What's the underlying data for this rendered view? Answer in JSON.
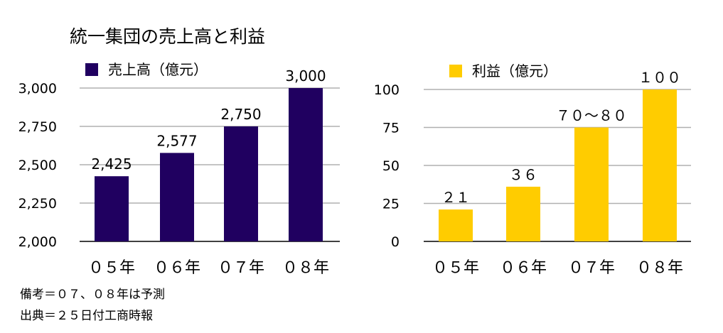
{
  "title": "統一集団の売上高と利益",
  "notes": {
    "remark": "備考＝０７、０８年は予測",
    "source": "出典＝２５日付工商時報"
  },
  "colors": {
    "sales": "#200060",
    "profit": "#ffcc00",
    "grid": "#b0b0b0"
  },
  "chart_data": [
    {
      "type": "bar",
      "legend": "売上高（億元）",
      "categories": [
        "０５年",
        "０６年",
        "０７年",
        "０８年"
      ],
      "values": [
        2425,
        2577,
        2750,
        3000
      ],
      "data_labels": [
        "2,425",
        "2,577",
        "2,750",
        "3,000"
      ],
      "ylim": [
        2000,
        3000
      ],
      "yticks": [
        2000,
        2250,
        2500,
        2750,
        3000
      ],
      "ytick_labels": [
        "2,000",
        "2,250",
        "2,500",
        "2,750",
        "3,000"
      ],
      "grid": true,
      "legend_position": "top-left"
    },
    {
      "type": "bar",
      "legend": "利益（億元）",
      "categories": [
        "０５年",
        "０６年",
        "０７年",
        "０８年"
      ],
      "values": [
        21,
        36,
        75,
        100
      ],
      "data_labels": [
        "２１",
        "３６",
        "７０～８０",
        "１００"
      ],
      "ylim": [
        0,
        100
      ],
      "yticks": [
        0,
        25,
        50,
        75,
        100
      ],
      "ytick_labels": [
        "0",
        "25",
        "50",
        "75",
        "100"
      ],
      "grid": true,
      "legend_position": "top-left"
    }
  ]
}
